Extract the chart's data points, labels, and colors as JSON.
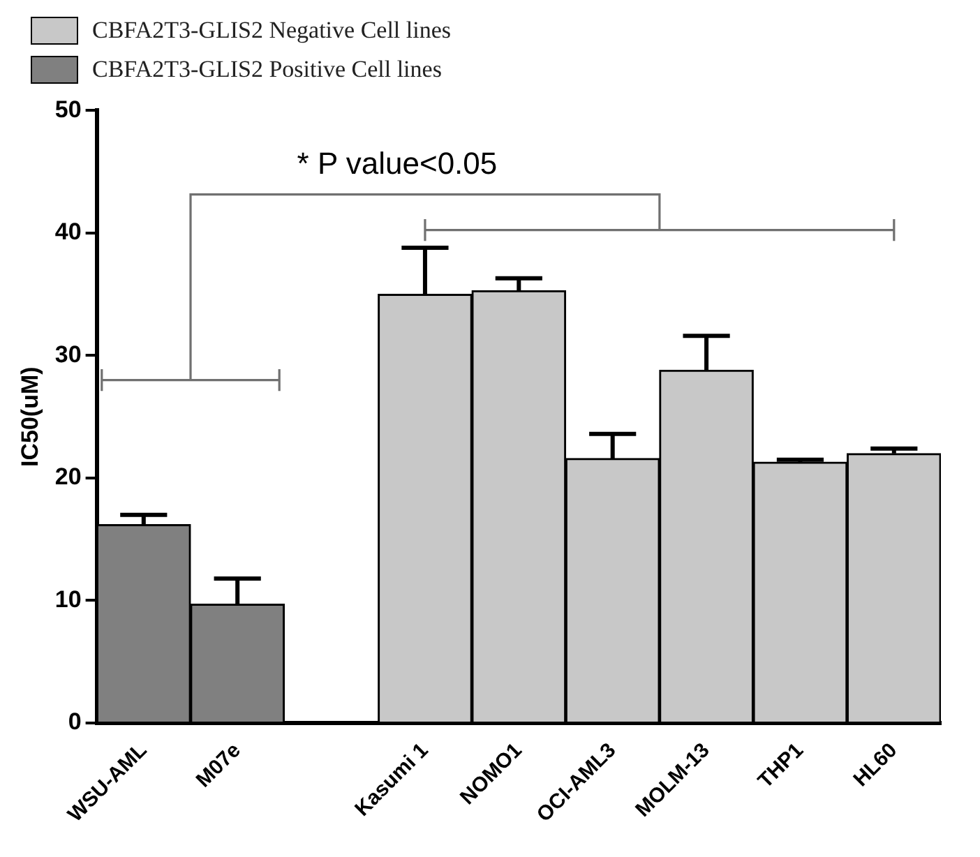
{
  "chart_data": {
    "type": "bar",
    "ylabel": "IC50(uM)",
    "categories": [
      "WSU-AML",
      "M07e",
      null,
      "Kasumi 1",
      "NOMO1",
      "OCI-AML3",
      "MOLM-13",
      "THP1",
      "HL60"
    ],
    "series": [
      {
        "name": "CBFA2T3-GLIS2 Negative Cell lines",
        "color": "#c8c8c8",
        "values": [
          null,
          null,
          null,
          35.0,
          35.3,
          21.6,
          28.8,
          21.3,
          22.0
        ],
        "errors": [
          null,
          null,
          null,
          [
            35.0,
            38.8
          ],
          [
            35.3,
            36.3
          ],
          [
            21.6,
            23.6
          ],
          [
            28.8,
            31.6
          ],
          [
            21.3,
            21.5
          ],
          [
            22.0,
            22.4
          ]
        ]
      },
      {
        "name": "CBFA2T3-GLIS2 Positive Cell lines",
        "color": "#808080",
        "values": [
          16.2,
          9.7,
          null,
          null,
          null,
          null,
          null,
          null,
          null
        ],
        "errors": [
          [
            16.2,
            17.0
          ],
          [
            9.7,
            11.8
          ],
          null,
          null,
          null,
          null,
          null,
          null,
          null
        ]
      }
    ],
    "ylim": [
      0,
      50
    ],
    "yticks": [
      0,
      10,
      20,
      30,
      40,
      50
    ],
    "grid": false,
    "legend": "top left",
    "annotations": [
      "* P value<0.05"
    ]
  }
}
